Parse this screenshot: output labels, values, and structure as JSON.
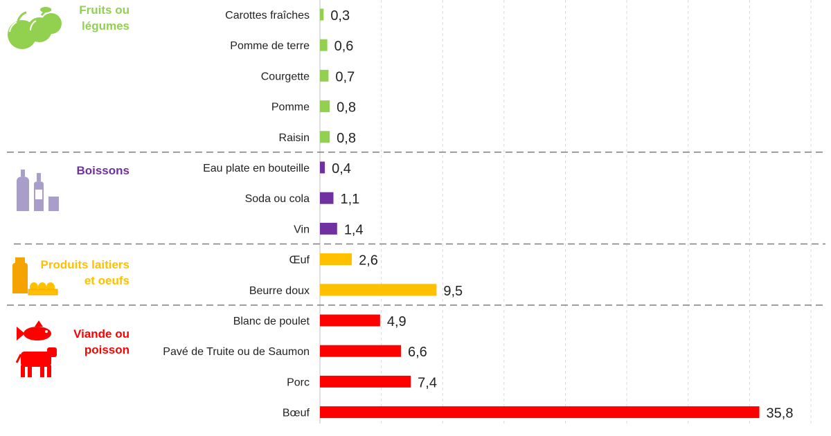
{
  "chart_data": {
    "type": "bar",
    "orientation": "horizontal",
    "xlim": [
      0,
      40
    ],
    "grid": true,
    "groups": [
      {
        "name": "Fruits ou légumes",
        "name_lines": [
          "Fruits ou",
          "légumes"
        ],
        "color": "#92d050",
        "icon": "apples-icon",
        "items": [
          {
            "label": "Carottes fraîches",
            "value": 0.3,
            "value_text": "0,3"
          },
          {
            "label": "Pomme de terre",
            "value": 0.6,
            "value_text": "0,6"
          },
          {
            "label": "Courgette",
            "value": 0.7,
            "value_text": "0,7"
          },
          {
            "label": "Pomme",
            "value": 0.8,
            "value_text": "0,8"
          },
          {
            "label": "Raisin",
            "value": 0.8,
            "value_text": "0,8"
          }
        ]
      },
      {
        "name": "Boissons",
        "name_lines": [
          "Boissons"
        ],
        "color": "#7030a0",
        "icon": "bottles-icon",
        "items": [
          {
            "label": "Eau plate en bouteille",
            "value": 0.4,
            "value_text": "0,4"
          },
          {
            "label": "Soda ou cola",
            "value": 1.1,
            "value_text": "1,1"
          },
          {
            "label": "Vin",
            "value": 1.4,
            "value_text": "1,4"
          }
        ]
      },
      {
        "name": "Produits laitiers et oeufs",
        "name_lines": [
          "Produits laitiers",
          "et oeufs"
        ],
        "color": "#ffc000",
        "icon": "milk-eggs-icon",
        "items": [
          {
            "label": "Œuf",
            "value": 2.6,
            "value_text": "2,6"
          },
          {
            "label": "Beurre doux",
            "value": 9.5,
            "value_text": "9,5"
          }
        ]
      },
      {
        "name": "Viande ou poisson",
        "name_lines": [
          "Viande ou",
          "poisson"
        ],
        "color": "#ff0000",
        "icon": "fish-cow-icon",
        "items": [
          {
            "label": "Blanc de poulet",
            "value": 4.9,
            "value_text": "4,9"
          },
          {
            "label": "Pavé de Truite ou de Saumon",
            "value": 6.6,
            "value_text": "6,6"
          },
          {
            "label": "Porc",
            "value": 7.4,
            "value_text": "7,4"
          },
          {
            "label": "Bœuf",
            "value": 35.8,
            "value_text": "35,8"
          }
        ]
      }
    ]
  }
}
